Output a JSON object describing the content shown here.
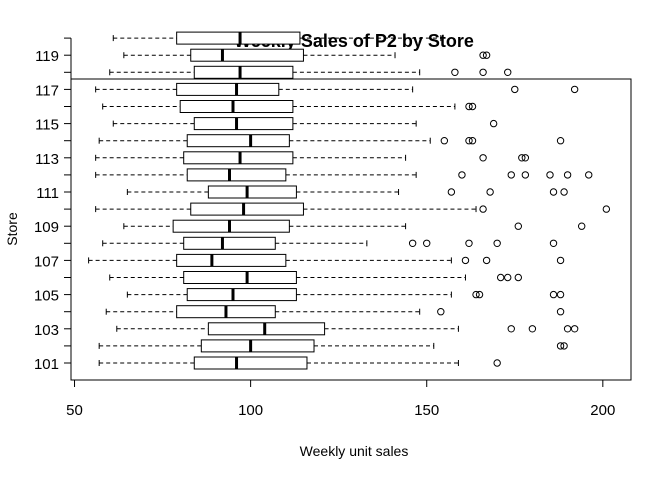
{
  "chart_data": {
    "type": "boxplot",
    "orientation": "horizontal",
    "title": "Weekly Sales of P2 by Store",
    "xlabel": "Weekly unit sales",
    "ylabel": "Store",
    "xlim": [
      49,
      208
    ],
    "x_ticks": [
      50,
      100,
      150,
      200
    ],
    "y_tick_labels": [
      "101",
      "103",
      "105",
      "107",
      "109",
      "111",
      "113",
      "115",
      "117",
      "119"
    ],
    "grid": false,
    "boxes": [
      {
        "store": "101",
        "min": 57,
        "q1": 84,
        "median": 96,
        "q3": 116,
        "max": 159,
        "outliers": [
          170
        ]
      },
      {
        "store": "102",
        "min": 57,
        "q1": 86,
        "median": 100,
        "q3": 118,
        "max": 152,
        "outliers": [
          188,
          189
        ]
      },
      {
        "store": "103",
        "min": 62,
        "q1": 88,
        "median": 104,
        "q3": 121,
        "max": 159,
        "outliers": [
          174,
          180,
          190,
          192
        ]
      },
      {
        "store": "104",
        "min": 59,
        "q1": 79,
        "median": 93,
        "q3": 107,
        "max": 148,
        "outliers": [
          154,
          188
        ]
      },
      {
        "store": "105",
        "min": 65,
        "q1": 82,
        "median": 95,
        "q3": 113,
        "max": 157,
        "outliers": [
          164,
          165,
          186,
          188
        ]
      },
      {
        "store": "106",
        "min": 60,
        "q1": 81,
        "median": 99,
        "q3": 113,
        "max": 161,
        "outliers": [
          171,
          173,
          176
        ]
      },
      {
        "store": "107",
        "min": 54,
        "q1": 79,
        "median": 89,
        "q3": 110,
        "max": 157,
        "outliers": [
          161,
          167,
          188
        ]
      },
      {
        "store": "108",
        "min": 58,
        "q1": 81,
        "median": 92,
        "q3": 107,
        "max": 133,
        "outliers": [
          146,
          150,
          162,
          170,
          186
        ]
      },
      {
        "store": "109",
        "min": 64,
        "q1": 78,
        "median": 94,
        "q3": 111,
        "max": 144,
        "outliers": [
          176,
          194
        ]
      },
      {
        "store": "110",
        "min": 56,
        "q1": 83,
        "median": 98,
        "q3": 115,
        "max": 164,
        "outliers": [
          166,
          201
        ]
      },
      {
        "store": "111",
        "min": 65,
        "q1": 88,
        "median": 99,
        "q3": 113,
        "max": 142,
        "outliers": [
          157,
          168,
          186,
          189
        ]
      },
      {
        "store": "112",
        "min": 56,
        "q1": 82,
        "median": 94,
        "q3": 110,
        "max": 147,
        "outliers": [
          160,
          174,
          178,
          185,
          190,
          196
        ]
      },
      {
        "store": "113",
        "min": 56,
        "q1": 81,
        "median": 97,
        "q3": 112,
        "max": 144,
        "outliers": [
          166,
          177,
          178
        ]
      },
      {
        "store": "114",
        "min": 57,
        "q1": 82,
        "median": 100,
        "q3": 111,
        "max": 151,
        "outliers": [
          155,
          162,
          163,
          188
        ]
      },
      {
        "store": "115",
        "min": 61,
        "q1": 84,
        "median": 96,
        "q3": 112,
        "max": 147,
        "outliers": [
          169
        ]
      },
      {
        "store": "116",
        "min": 58,
        "q1": 80,
        "median": 95,
        "q3": 112,
        "max": 158,
        "outliers": [
          162,
          163
        ]
      },
      {
        "store": "117",
        "min": 56,
        "q1": 79,
        "median": 96,
        "q3": 108,
        "max": 146,
        "outliers": [
          175,
          192
        ]
      },
      {
        "store": "118",
        "min": 60,
        "q1": 84,
        "median": 97,
        "q3": 112,
        "max": 148,
        "outliers": [
          158,
          166,
          173
        ]
      },
      {
        "store": "119",
        "min": 64,
        "q1": 83,
        "median": 92,
        "q3": 115,
        "max": 141,
        "outliers": [
          166,
          167
        ]
      },
      {
        "store": "120",
        "min": 61,
        "q1": 79,
        "median": 97,
        "q3": 114,
        "max": 154,
        "outliers": []
      }
    ]
  }
}
